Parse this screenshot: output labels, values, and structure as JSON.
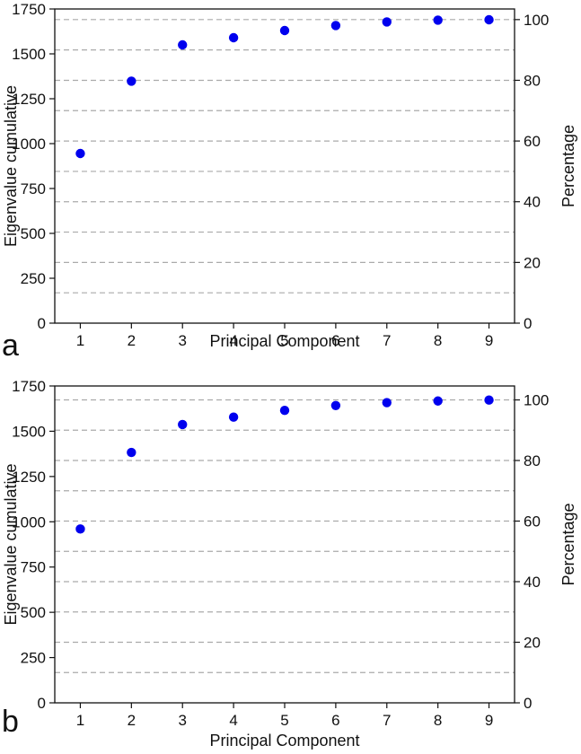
{
  "chart_data": [
    {
      "type": "scatter",
      "panel_label": "a",
      "xlabel": "Principal Component",
      "ylabel": "Eigenvalue cumulative",
      "ylabel_right": "Percentage",
      "x": [
        1,
        2,
        3,
        4,
        5,
        6,
        7,
        8,
        9
      ],
      "y": [
        945,
        1348,
        1550,
        1590,
        1630,
        1658,
        1678,
        1688,
        1690
      ],
      "xlim": [
        0.5,
        9.5
      ],
      "ylim": [
        0,
        1750
      ],
      "yticks": [
        0,
        250,
        500,
        750,
        1000,
        1250,
        1500,
        1750
      ],
      "ylim_right": [
        0,
        103.5
      ],
      "yticks_right": [
        0,
        20,
        40,
        60,
        80,
        100
      ],
      "gridlines_right": [
        10,
        20,
        30,
        40,
        50,
        60,
        70,
        80,
        90,
        100
      ],
      "grid": "dashed horizontal at right-axis multiples of 10",
      "marker_color": "#0000ee",
      "grid_color": "#aaaaaa"
    },
    {
      "type": "scatter",
      "panel_label": "b",
      "xlabel": "Principal Component",
      "ylabel": "Eigenvalue cumulative",
      "ylabel_right": "Percentage",
      "x": [
        1,
        2,
        3,
        4,
        5,
        6,
        7,
        8,
        9
      ],
      "y": [
        960,
        1383,
        1537,
        1578,
        1615,
        1642,
        1658,
        1667,
        1672
      ],
      "xlim": [
        0.5,
        9.5
      ],
      "ylim": [
        0,
        1750
      ],
      "yticks": [
        0,
        250,
        500,
        750,
        1000,
        1250,
        1500,
        1750
      ],
      "ylim_right": [
        0,
        104.6
      ],
      "yticks_right": [
        0,
        20,
        40,
        60,
        80,
        100
      ],
      "gridlines_right": [
        10,
        20,
        30,
        40,
        50,
        60,
        70,
        80,
        90,
        100
      ],
      "grid": "dashed horizontal at right-axis multiples of 10",
      "marker_color": "#0000ee",
      "grid_color": "#aaaaaa"
    }
  ]
}
